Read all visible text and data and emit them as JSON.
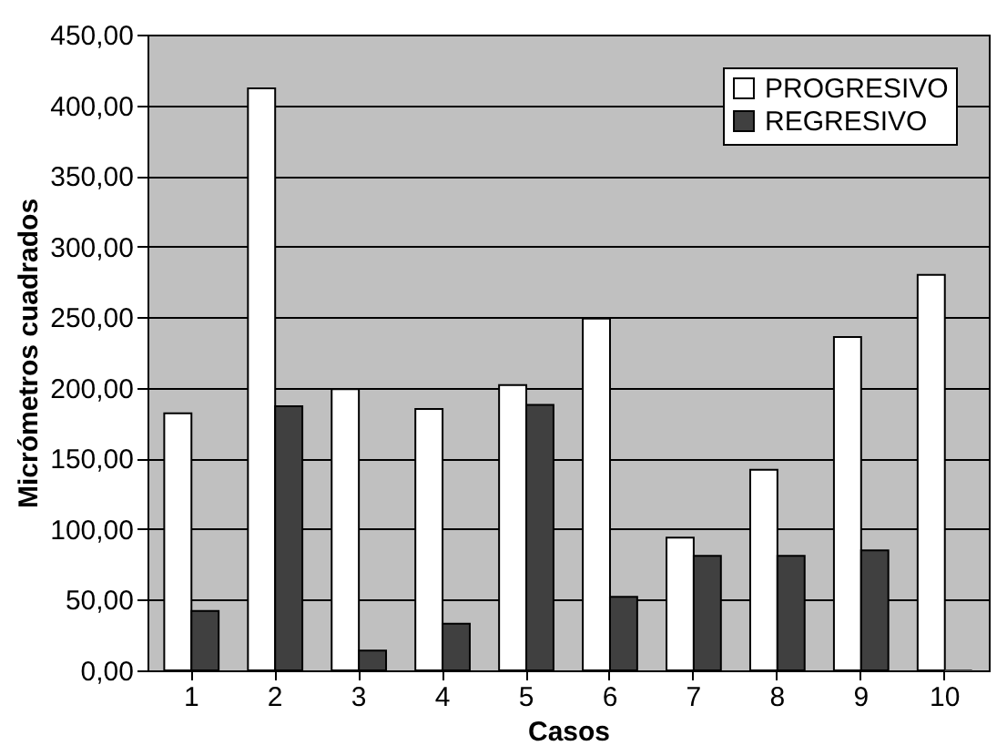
{
  "chart_data": {
    "type": "bar",
    "xlabel": "Casos",
    "ylabel": "Micrómetros cuadrados",
    "categories": [
      "1",
      "2",
      "3",
      "4",
      "5",
      "6",
      "7",
      "8",
      "9",
      "10"
    ],
    "series": [
      {
        "name": "PROGRESIVO",
        "color": "#ffffff",
        "values": [
          182,
          412,
          199,
          185,
          202,
          249,
          94,
          142,
          236,
          280
        ]
      },
      {
        "name": "REGRESIVO",
        "color": "#404040",
        "values": [
          42,
          187,
          14,
          33,
          188,
          52,
          81,
          81,
          85,
          0
        ]
      }
    ],
    "ylim": [
      0,
      450
    ],
    "yticks": [
      {
        "value": 0,
        "label": "0,00"
      },
      {
        "value": 50,
        "label": "50,00"
      },
      {
        "value": 100,
        "label": "100,00"
      },
      {
        "value": 150,
        "label": "150,00"
      },
      {
        "value": 200,
        "label": "200,00"
      },
      {
        "value": 250,
        "label": "250,00"
      },
      {
        "value": 300,
        "label": "300,00"
      },
      {
        "value": 350,
        "label": "350,00"
      },
      {
        "value": 400,
        "label": "400,00"
      },
      {
        "value": 450,
        "label": "450,00"
      }
    ],
    "grid": "y",
    "legend": "top right"
  }
}
